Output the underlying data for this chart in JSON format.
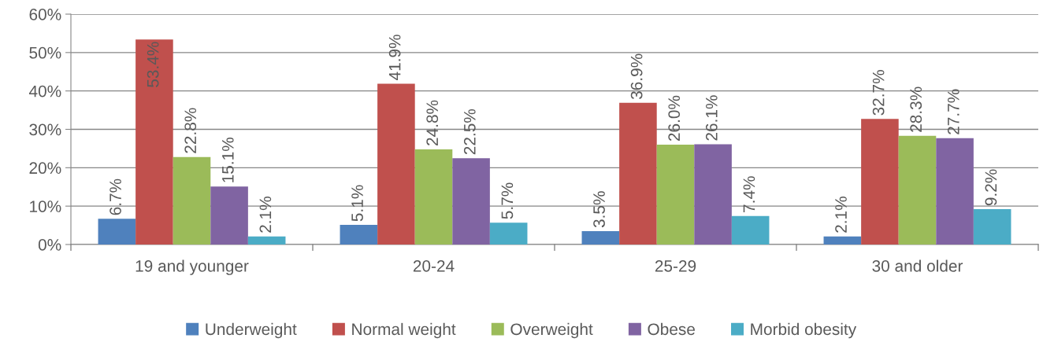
{
  "chart_data": {
    "type": "bar",
    "categories": [
      "19 and younger",
      "20-24",
      "25-29",
      "30 and older"
    ],
    "series": [
      {
        "name": "Underweight",
        "color": "#4f81bd",
        "values": [
          6.7,
          5.1,
          3.5,
          2.1
        ],
        "value_labels": [
          "6.7%",
          "5.1%",
          "3.5%",
          "2.1%"
        ]
      },
      {
        "name": "Normal weight",
        "color": "#c0504d",
        "values": [
          53.4,
          41.9,
          36.9,
          32.7
        ],
        "value_labels": [
          "53.4%",
          "41.9%",
          "36.9%",
          "32.7%"
        ]
      },
      {
        "name": "Overweight",
        "color": "#9bbb59",
        "values": [
          22.8,
          24.8,
          26.0,
          28.3
        ],
        "value_labels": [
          "22.8%",
          "24.8%",
          "26.0%",
          "28.3%"
        ]
      },
      {
        "name": "Obese",
        "color": "#8064a2",
        "values": [
          15.1,
          22.5,
          26.1,
          27.7
        ],
        "value_labels": [
          "15.1%",
          "22.5%",
          "26.1%",
          "27.7%"
        ]
      },
      {
        "name": "Morbid obesity",
        "color": "#4bacc6",
        "values": [
          2.1,
          5.7,
          7.4,
          9.2
        ],
        "value_labels": [
          "2.1%",
          "5.7%",
          "7.4%",
          "9.2%"
        ]
      }
    ],
    "ylim": [
      0,
      60
    ],
    "yticks": [
      {
        "value": 0,
        "label": "0%"
      },
      {
        "value": 10,
        "label": "10%"
      },
      {
        "value": 20,
        "label": "20%"
      },
      {
        "value": 30,
        "label": "30%"
      },
      {
        "value": 40,
        "label": "40%"
      },
      {
        "value": 50,
        "label": "50%"
      },
      {
        "value": 60,
        "label": "60%"
      }
    ],
    "grid": "y",
    "legend": "bottom"
  }
}
